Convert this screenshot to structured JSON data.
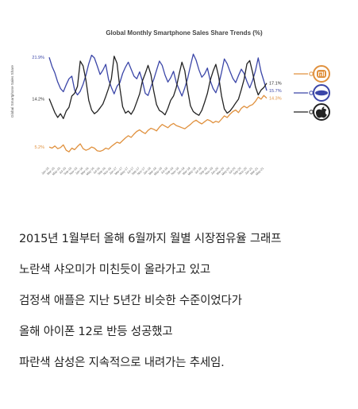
{
  "chart_data": {
    "type": "line",
    "title": "Global Monthly Smartphone Sales Share Trends (%)",
    "ylabel": "Global Smartphone Sales Share",
    "xlabel": "",
    "ylim": [
      3,
      24
    ],
    "grid": false,
    "legend": "right",
    "y_ticks": [
      {
        "value": 21.9,
        "label": "21.9%",
        "color": "#3b46a8"
      },
      {
        "value": 14.2,
        "label": "14.2%",
        "color": "#333333"
      },
      {
        "value": 5.2,
        "label": "5.2%",
        "color": "#e0913e"
      }
    ],
    "x": [
      "Jan-15",
      "Feb-15",
      "Mar-15",
      "Apr-15",
      "May-15",
      "Jun-15",
      "Jul-15",
      "Aug-15",
      "Sep-15",
      "Oct-15",
      "Nov-15",
      "Dec-15",
      "Jan-16",
      "Feb-16",
      "Mar-16",
      "Apr-16",
      "May-16",
      "Jun-16",
      "Jul-16",
      "Aug-16",
      "Sep-16",
      "Oct-16",
      "Nov-16",
      "Dec-16",
      "Jan-17",
      "Feb-17",
      "Mar-17",
      "Apr-17",
      "May-17",
      "Jun-17",
      "Jul-17",
      "Aug-17",
      "Sep-17",
      "Oct-17",
      "Nov-17",
      "Dec-17",
      "Jan-18",
      "Feb-18",
      "Mar-18",
      "Apr-18",
      "May-18",
      "Jun-18",
      "Jul-18",
      "Aug-18",
      "Sep-18",
      "Oct-18",
      "Nov-18",
      "Dec-18",
      "Jan-19",
      "Feb-19",
      "Mar-19",
      "Apr-19",
      "May-19",
      "Jun-19",
      "Jul-19",
      "Aug-19",
      "Sep-19",
      "Oct-19",
      "Nov-19",
      "Dec-19",
      "Jan-20",
      "Feb-20",
      "Mar-20",
      "Apr-20",
      "May-20",
      "Jun-20",
      "Jul-20",
      "Aug-20",
      "Sep-20",
      "Oct-20",
      "Nov-20",
      "Dec-20",
      "Jan-21",
      "Feb-21",
      "Mar-21",
      "Apr-21",
      "May-21",
      "Jun-21"
    ],
    "x_tick_labels": [
      "Jan-15",
      "Mar-15",
      "May-15",
      "Jul-15",
      "Sep-15",
      "Nov-15",
      "Jan-16",
      "Mar-16",
      "May-16",
      "Jul-16",
      "Sep-16",
      "Nov-16",
      "Jan-17",
      "Mar-17",
      "May-17",
      "Jul-17",
      "Sep-17",
      "Nov-17",
      "Jan-18",
      "Mar-18",
      "May-18",
      "Jul-18",
      "Sep-18",
      "Nov-18",
      "Jan-19",
      "Mar-19",
      "May-19",
      "Jul-19",
      "Sep-19",
      "Nov-19",
      "Jan-20",
      "Mar-20",
      "May-20",
      "Jul-20",
      "Sep-20",
      "Nov-20",
      "Jan-21",
      "Mar-21",
      "May-21"
    ],
    "series": [
      {
        "key": "xiaomi",
        "color": "#e0913e",
        "icon": "xiaomi-logo-icon",
        "end_label": "14.3%",
        "values": [
          5.2,
          5.0,
          5.4,
          4.9,
          5.1,
          5.6,
          4.6,
          4.3,
          5.0,
          4.7,
          5.3,
          5.8,
          4.9,
          4.6,
          4.8,
          5.2,
          5.0,
          4.5,
          4.4,
          4.6,
          5.0,
          4.8,
          5.3,
          5.7,
          6.1,
          5.9,
          6.4,
          6.9,
          7.3,
          7.0,
          7.6,
          8.1,
          8.4,
          8.0,
          7.7,
          8.3,
          8.7,
          8.5,
          8.2,
          8.9,
          9.4,
          9.1,
          8.8,
          9.3,
          9.6,
          9.2,
          9.0,
          8.8,
          8.6,
          9.0,
          9.4,
          9.9,
          10.2,
          9.8,
          9.5,
          9.9,
          10.3,
          10.1,
          9.7,
          10.0,
          9.8,
          10.4,
          11.0,
          10.7,
          11.3,
          11.8,
          12.1,
          11.6,
          12.4,
          12.8,
          12.5,
          12.9,
          13.1,
          13.7,
          14.5,
          14.1,
          14.8,
          14.3
        ]
      },
      {
        "key": "samsung",
        "color": "#3b46a8",
        "icon": "samsung-logo-icon",
        "end_label": "15.7%",
        "values": [
          21.9,
          20.2,
          19.0,
          17.3,
          16.1,
          15.5,
          16.8,
          17.9,
          18.4,
          15.8,
          14.9,
          15.6,
          16.9,
          18.6,
          20.7,
          22.3,
          21.8,
          20.3,
          18.7,
          19.5,
          20.6,
          17.8,
          16.3,
          15.1,
          16.5,
          17.2,
          18.9,
          20.1,
          21.0,
          19.7,
          18.4,
          17.9,
          19.2,
          17.5,
          15.2,
          14.8,
          16.4,
          17.8,
          19.5,
          21.2,
          20.4,
          18.6,
          17.3,
          18.1,
          19.3,
          17.2,
          15.9,
          14.7,
          16.2,
          18.0,
          20.3,
          22.5,
          21.4,
          19.6,
          18.2,
          18.8,
          19.9,
          17.6,
          16.1,
          15.3,
          16.8,
          19.1,
          21.6,
          20.7,
          19.3,
          18.0,
          17.2,
          18.5,
          19.7,
          18.9,
          17.4,
          16.2,
          17.6,
          19.4,
          21.8,
          19.2,
          17.5,
          15.7
        ]
      },
      {
        "key": "apple",
        "color": "#222222",
        "icon": "apple-logo-icon",
        "end_label": "17.1%",
        "values": [
          14.2,
          12.9,
          11.6,
          10.7,
          11.4,
          10.5,
          11.9,
          12.6,
          14.7,
          15.2,
          16.5,
          21.2,
          20.3,
          17.6,
          13.9,
          12.1,
          11.4,
          11.8,
          12.5,
          13.2,
          14.6,
          16.1,
          17.9,
          22.1,
          20.8,
          16.2,
          12.7,
          11.5,
          11.9,
          11.3,
          12.2,
          13.6,
          15.1,
          17.5,
          18.9,
          20.4,
          18.7,
          15.6,
          13.1,
          12.0,
          11.7,
          11.2,
          12.4,
          13.9,
          14.7,
          16.3,
          18.8,
          21.0,
          19.4,
          15.8,
          12.9,
          11.8,
          11.4,
          11.1,
          12.0,
          13.5,
          15.2,
          17.6,
          19.3,
          20.6,
          18.3,
          14.7,
          12.3,
          11.5,
          11.9,
          12.6,
          13.4,
          14.1,
          15.9,
          17.8,
          20.7,
          21.3,
          19.1,
          16.4,
          14.9,
          15.8,
          16.3,
          17.1
        ]
      }
    ]
  },
  "caption": {
    "lines": [
      "2015년 1월부터 올해 6월까지 월별 시장점유율 그래프",
      "노란색 샤오미가 미친듯이 올라가고 있고",
      "검정색 애플은 지난 5년간 비슷한 수준이었다가",
      "올해 아이폰 12로 반등 성공했고",
      "파란색 삼성은 지속적으로 내려가는 추세임."
    ]
  }
}
